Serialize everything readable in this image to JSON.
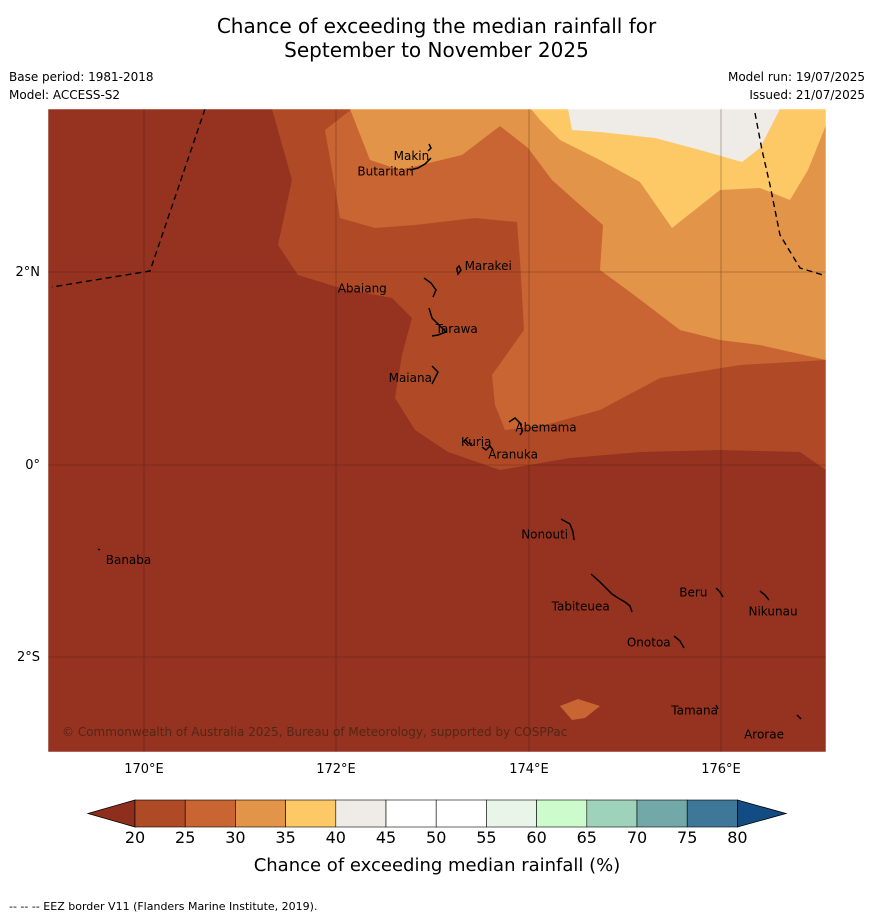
{
  "title": {
    "line1": "Chance of exceeding the median rainfall for",
    "line2": "September to November 2025"
  },
  "meta": {
    "base_period": "Base period: 1981-2018",
    "model": "Model: ACCESS-S2",
    "model_run": "Model run: 19/07/2025",
    "issued": "Issued: 21/07/2025"
  },
  "map": {
    "lat_labels": [
      "2°N",
      "0°",
      "2°S"
    ],
    "lon_labels": [
      "170°E",
      "172°E",
      "174°E",
      "176°E"
    ],
    "copyright": "© Commonwealth of Australia 2025, Bureau of Meteorology, supported by COSPPac",
    "places": [
      {
        "name": "Makin",
        "lon": 172.99,
        "lat": 3.18
      },
      {
        "name": "Butaritari",
        "lon": 172.79,
        "lat": 3.07
      },
      {
        "name": "Marakei",
        "lon": 173.27,
        "lat": 2.01
      },
      {
        "name": "Abaiang",
        "lon": 172.97,
        "lat": 1.85
      },
      {
        "name": "Tarawa",
        "lon": 173.0,
        "lat": 1.42
      },
      {
        "name": "Maiana",
        "lon": 173.0,
        "lat": 0.92
      },
      {
        "name": "Abemama",
        "lon": 173.85,
        "lat": 0.4
      },
      {
        "name": "Kuria",
        "lon": 173.42,
        "lat": 0.23
      },
      {
        "name": "Aranuka",
        "lon": 173.63,
        "lat": 0.17
      },
      {
        "name": "Nonouti",
        "lon": 174.42,
        "lat": -0.67
      },
      {
        "name": "Banaba",
        "lon": 169.54,
        "lat": -0.88
      },
      {
        "name": "Tabiteuea",
        "lon": 174.83,
        "lat": -1.33
      },
      {
        "name": "Beru",
        "lon": 175.98,
        "lat": -1.33
      },
      {
        "name": "Nikunau",
        "lon": 176.45,
        "lat": -1.35
      },
      {
        "name": "Onotoa",
        "lon": 175.56,
        "lat": -1.8
      },
      {
        "name": "Tamana",
        "lon": 175.98,
        "lat": -2.49
      },
      {
        "name": "Arorae",
        "lon": 176.82,
        "lat": -2.65
      }
    ]
  },
  "legend": {
    "ticks": [
      "20",
      "25",
      "30",
      "35",
      "40",
      "45",
      "50",
      "55",
      "60",
      "65",
      "70",
      "75",
      "80"
    ],
    "label": "Chance of exceeding median rainfall (%)",
    "colors": [
      "#8e2e1c",
      "#ae4a26",
      "#c96532",
      "#e29548",
      "#fdc967",
      "#efebe7",
      "#ffffff",
      "#ffffff",
      "#e8f5e8",
      "#ccfccc",
      "#9fd2bb",
      "#72a9a8",
      "#3f7799",
      "#134c82"
    ]
  },
  "footer": {
    "eez_note": "--  --  -- EEZ border V11 (Flanders Marine Institute, 2019)."
  },
  "colors": {
    "c20": "#963220",
    "c25": "#b04a26",
    "c30": "#c96532",
    "c35": "#e29548",
    "c40": "#fdc967",
    "c45": "#efebe7"
  }
}
